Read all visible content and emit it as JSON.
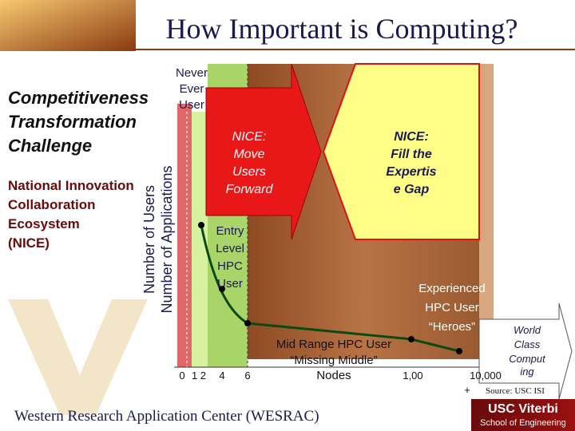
{
  "title": "How Important is Computing?",
  "heading": [
    "Competitiveness",
    "Transformation",
    "Challenge"
  ],
  "subheading": [
    "National Innovation",
    "Collaboration",
    "Ecosystem",
    "(NICE)"
  ],
  "axis_labels": [
    "Number of Users",
    "Number of Applications"
  ],
  "never_ever": [
    "Never",
    "Ever",
    "User"
  ],
  "arrow_move": [
    "NICE:",
    "Move",
    "Users",
    "Forward"
  ],
  "arrow_fill": [
    "NICE:",
    "Fill the",
    "Expertis",
    "e Gap"
  ],
  "entry_level": [
    "Entry",
    "Level",
    "HPC",
    "User"
  ],
  "experienced": [
    "Experienced",
    "HPC User",
    "“Heroes”"
  ],
  "mid_range": [
    "Mid Range HPC User",
    "“Missing Middle”"
  ],
  "x_labels": [
    "0",
    "1 2",
    "4",
    "6",
    "Nodes",
    "1,00",
    "10,000",
    "+"
  ],
  "world_class": [
    "World",
    "Class",
    "Comput",
    "ing"
  ],
  "source": "Source: USC ISI",
  "footer": "Western Research Application Center (WESRAC)",
  "logo": {
    "name": "USC Viterbi",
    "school": "School of Engineering"
  }
}
